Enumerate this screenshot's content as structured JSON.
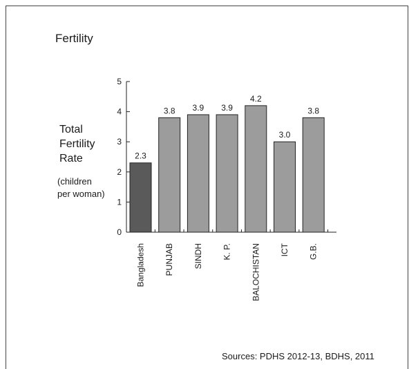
{
  "chart_data": {
    "type": "bar",
    "title": "Fertility",
    "ylabel_lines": [
      "Total",
      "Fertility",
      "Rate"
    ],
    "yunit_lines": [
      "(children",
      "per woman)"
    ],
    "categories": [
      "Bangladesh",
      "PUNJAB",
      "SINDH",
      "K. P.",
      "BALOCHISTAN",
      "ICT",
      "G.B."
    ],
    "values": [
      2.3,
      3.8,
      3.9,
      3.9,
      4.2,
      3.0,
      3.8
    ],
    "value_labels": [
      "2.3",
      "3.8",
      "3.9",
      "3.9",
      "4.2",
      "3.0",
      "3.8"
    ],
    "ylim": [
      0,
      5
    ],
    "yticks": [
      0,
      1,
      2,
      3,
      4,
      5
    ],
    "colors": [
      "#5a5a5a",
      "#9c9c9c",
      "#9c9c9c",
      "#9c9c9c",
      "#9c9c9c",
      "#9c9c9c",
      "#9c9c9c"
    ],
    "grid": false,
    "source": "Sources:  PDHS 2012-13, BDHS, 2011"
  }
}
